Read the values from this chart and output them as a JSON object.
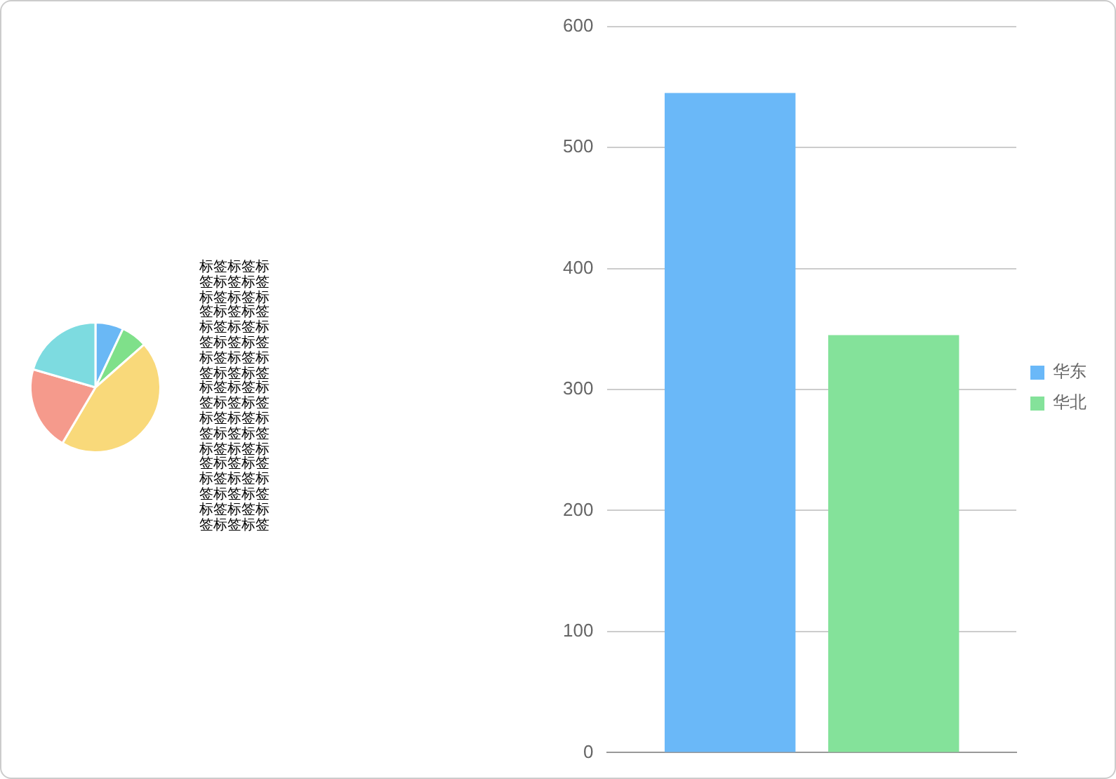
{
  "chart_data": [
    {
      "type": "pie",
      "categories": [
        null,
        null,
        null,
        null,
        null
      ],
      "values": [
        7,
        6.5,
        45,
        21,
        20.5
      ],
      "colors": [
        "#6ab8f5",
        "#7fe08a",
        "#f9d97a",
        "#f59a8c",
        "#7ddbe0"
      ],
      "legend": false,
      "annotations": [
        "标签标签标签标签标签标签标签标签标签标签标签标签标签标签标签标签标签标签标签标签标签标签标签标签标签标签标签标签标签标签标签标签标签标签标签标签标签标签标签标签标签标签标签标签标签"
      ]
    },
    {
      "type": "bar",
      "categories": [
        null
      ],
      "series": [
        {
          "name": "华东",
          "color": "#6ab8f8",
          "values": [
            545
          ]
        },
        {
          "name": "华北",
          "color": "#84e29a",
          "values": [
            345
          ]
        }
      ],
      "ylim": [
        0,
        600
      ],
      "yticks": [
        0,
        100,
        200,
        300,
        400,
        500,
        600
      ],
      "grid": "y",
      "legend": "right"
    }
  ]
}
